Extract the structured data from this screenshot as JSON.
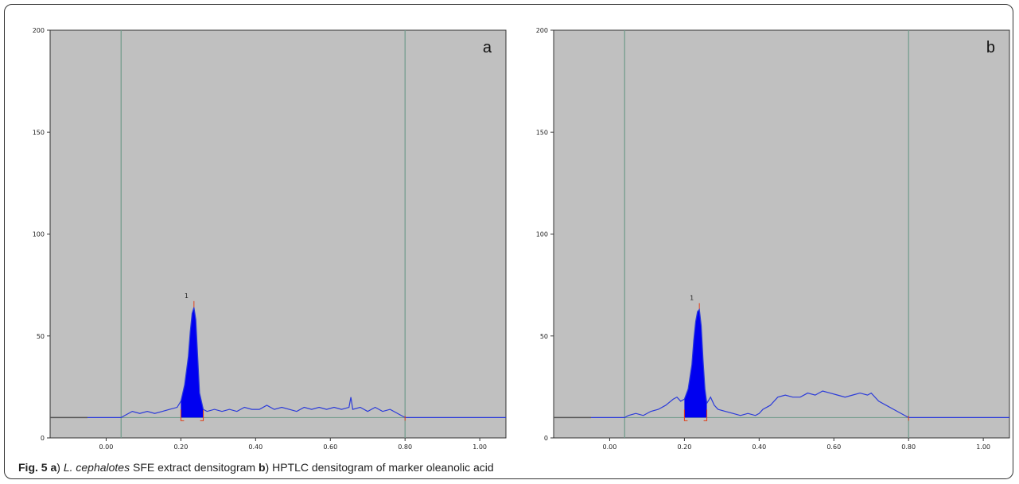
{
  "caption": {
    "fig": "Fig. 5",
    "a_letter": "a",
    "a_paren": ") ",
    "species": "L. cephalotes",
    "a_text": " SFE extract densitogram ",
    "b_letter": "b",
    "b_paren": ") ",
    "b_text": "HPTLC densitogram of marker oleanolic acid"
  },
  "colors": {
    "plot_bg": "#c0c0c0",
    "trace": "#2b3bd9",
    "peak_fill": "#0000f0",
    "vertical_lines": "#6e9a8a",
    "baseline_left": "#555555",
    "markers": "#e0401a"
  },
  "chart_data": [
    {
      "type": "line",
      "panel_label": "a",
      "xlim": [
        -0.15,
        1.07
      ],
      "ylim": [
        0,
        200
      ],
      "x_ticks": [
        "0.00",
        "0.20",
        "0.40",
        "0.60",
        "0.80",
        "1.00"
      ],
      "y_ticks": [
        "0",
        "50",
        "100",
        "150",
        "200"
      ],
      "grid": false,
      "vertical_lines_x": [
        0.04,
        0.8
      ],
      "peaks": [
        {
          "label": "1",
          "x": 0.235,
          "height": 64,
          "start": 0.2,
          "end": 0.26
        }
      ],
      "series": [
        {
          "x": [
            -0.15,
            -0.05,
            0.04,
            0.05,
            0.07,
            0.09,
            0.11,
            0.13,
            0.15,
            0.17,
            0.19,
            0.2,
            0.21,
            0.22,
            0.225,
            0.23,
            0.235,
            0.24,
            0.245,
            0.25,
            0.26,
            0.27,
            0.29,
            0.31,
            0.33,
            0.35,
            0.37,
            0.39,
            0.41,
            0.43,
            0.45,
            0.47,
            0.49,
            0.51,
            0.53,
            0.55,
            0.57,
            0.59,
            0.61,
            0.63,
            0.65,
            0.655,
            0.66,
            0.68,
            0.7,
            0.72,
            0.74,
            0.76,
            0.78,
            0.8,
            0.9,
            1.07
          ],
          "y": [
            10,
            10,
            10,
            11,
            13,
            12,
            13,
            12,
            13,
            14,
            15,
            18,
            26,
            40,
            52,
            61,
            64,
            58,
            40,
            22,
            14,
            13,
            14,
            13,
            14,
            13,
            15,
            14,
            14,
            16,
            14,
            15,
            14,
            13,
            15,
            14,
            15,
            14,
            15,
            14,
            15,
            20,
            14,
            15,
            13,
            15,
            13,
            14,
            12,
            10,
            10,
            10
          ]
        }
      ]
    },
    {
      "type": "line",
      "panel_label": "b",
      "xlim": [
        -0.15,
        1.07
      ],
      "ylim": [
        0,
        200
      ],
      "x_ticks": [
        "0.00",
        "0.20",
        "0.40",
        "0.60",
        "0.80",
        "1.00"
      ],
      "y_ticks": [
        "0",
        "50",
        "100",
        "150",
        "200"
      ],
      "grid": false,
      "vertical_lines_x": [
        0.04,
        0.8
      ],
      "peaks": [
        {
          "label": "1",
          "x": 0.24,
          "height": 63,
          "start": 0.2,
          "end": 0.26
        }
      ],
      "series": [
        {
          "x": [
            -0.15,
            -0.05,
            0.04,
            0.05,
            0.07,
            0.09,
            0.11,
            0.13,
            0.15,
            0.17,
            0.18,
            0.19,
            0.2,
            0.21,
            0.22,
            0.225,
            0.23,
            0.235,
            0.24,
            0.245,
            0.25,
            0.255,
            0.26,
            0.27,
            0.28,
            0.29,
            0.31,
            0.33,
            0.35,
            0.37,
            0.39,
            0.4,
            0.41,
            0.43,
            0.45,
            0.47,
            0.49,
            0.51,
            0.53,
            0.55,
            0.57,
            0.59,
            0.61,
            0.63,
            0.65,
            0.67,
            0.69,
            0.7,
            0.72,
            0.74,
            0.76,
            0.78,
            0.8,
            0.9,
            1.07
          ],
          "y": [
            10,
            10,
            10,
            11,
            12,
            11,
            13,
            14,
            16,
            19,
            20,
            18,
            19,
            24,
            36,
            48,
            57,
            62,
            63,
            55,
            38,
            24,
            17,
            20,
            16,
            14,
            13,
            12,
            11,
            12,
            11,
            12,
            14,
            16,
            20,
            21,
            20,
            20,
            22,
            21,
            23,
            22,
            21,
            20,
            21,
            22,
            21,
            22,
            18,
            16,
            14,
            12,
            10,
            10,
            10
          ]
        }
      ]
    }
  ]
}
